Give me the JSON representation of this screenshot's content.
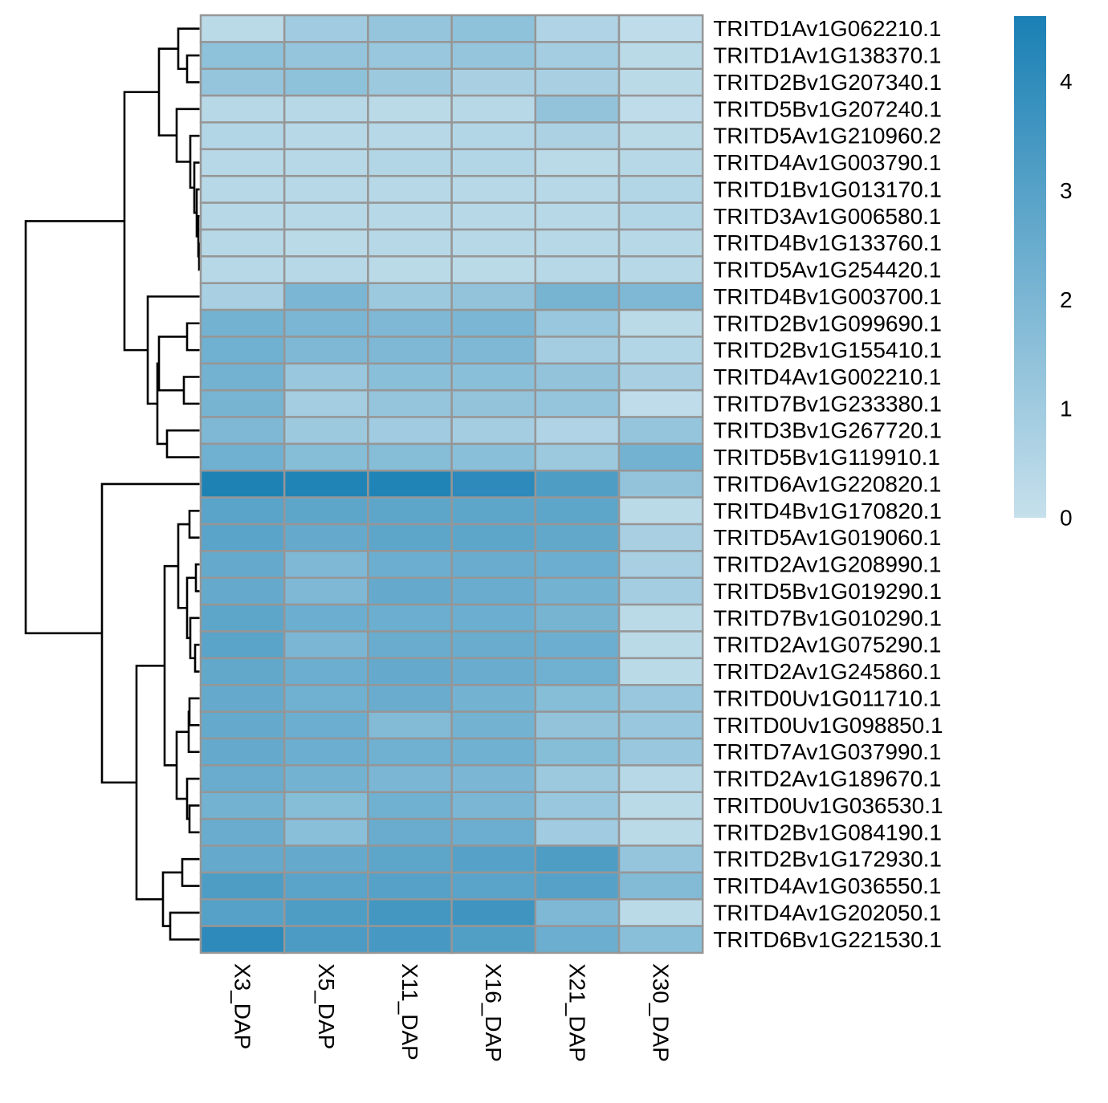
{
  "chart_data": {
    "type": "heatmap",
    "title": "",
    "xlabel": "",
    "ylabel": "",
    "columns": [
      "X3_DAP",
      "X5_DAP",
      "X11_DAP",
      "X16_DAP",
      "X21_DAP",
      "X30_DAP"
    ],
    "rows": [
      "TRITD1Av1G062210.1",
      "TRITD1Av1G138370.1",
      "TRITD2Bv1G207340.1",
      "TRITD5Bv1G207240.1",
      "TRITD5Av1G210960.2",
      "TRITD4Av1G003790.1",
      "TRITD1Bv1G013170.1",
      "TRITD3Av1G006580.1",
      "TRITD4Bv1G133760.1",
      "TRITD5Av1G254420.1",
      "TRITD4Bv1G003700.1",
      "TRITD2Bv1G099690.1",
      "TRITD2Bv1G155410.1",
      "TRITD4Av1G002210.1",
      "TRITD7Bv1G233380.1",
      "TRITD3Bv1G267720.1",
      "TRITD5Bv1G119910.1",
      "TRITD6Av1G220820.1",
      "TRITD4Bv1G170820.1",
      "TRITD5Av1G019060.1",
      "TRITD2Av1G208990.1",
      "TRITD5Bv1G019290.1",
      "TRITD7Bv1G010290.1",
      "TRITD2Av1G075290.1",
      "TRITD2Av1G245860.1",
      "TRITD0Uv1G011710.1",
      "TRITD0Uv1G098850.1",
      "TRITD7Av1G037990.1",
      "TRITD2Av1G189670.1",
      "TRITD0Uv1G036530.1",
      "TRITD2Bv1G084190.1",
      "TRITD2Bv1G172930.1",
      "TRITD4Av1G036550.1",
      "TRITD4Av1G202050.1",
      "TRITD6Bv1G221530.1"
    ],
    "values": [
      [
        0.3,
        1.0,
        1.3,
        1.5,
        0.6,
        0.2
      ],
      [
        1.5,
        1.3,
        1.2,
        1.3,
        0.9,
        0.3
      ],
      [
        1.3,
        1.5,
        1.1,
        0.8,
        0.8,
        0.3
      ],
      [
        0.4,
        0.4,
        0.3,
        0.4,
        1.4,
        0.2
      ],
      [
        0.5,
        0.4,
        0.4,
        0.5,
        0.7,
        0.3
      ],
      [
        0.4,
        0.4,
        0.5,
        0.5,
        0.3,
        0.4
      ],
      [
        0.4,
        0.4,
        0.4,
        0.4,
        0.4,
        0.5
      ],
      [
        0.4,
        0.4,
        0.4,
        0.4,
        0.4,
        0.5
      ],
      [
        0.4,
        0.3,
        0.4,
        0.4,
        0.4,
        0.4
      ],
      [
        0.4,
        0.4,
        0.3,
        0.3,
        0.4,
        0.4
      ],
      [
        0.8,
        2.0,
        1.1,
        1.4,
        2.1,
        1.9
      ],
      [
        2.2,
        2.0,
        1.9,
        2.0,
        1.2,
        0.3
      ],
      [
        2.3,
        1.9,
        1.9,
        1.9,
        0.9,
        0.5
      ],
      [
        2.2,
        1.2,
        1.6,
        1.6,
        1.4,
        0.8
      ],
      [
        2.1,
        0.9,
        1.3,
        1.4,
        1.3,
        0.2
      ],
      [
        1.9,
        1.1,
        1.0,
        0.9,
        0.6,
        1.3
      ],
      [
        2.3,
        1.7,
        1.7,
        1.6,
        1.1,
        2.2
      ],
      [
        4.5,
        4.4,
        4.4,
        4.1,
        3.2,
        1.4
      ],
      [
        2.9,
        2.8,
        2.8,
        2.8,
        2.8,
        0.3
      ],
      [
        2.9,
        2.6,
        2.8,
        2.8,
        2.7,
        0.8
      ],
      [
        2.6,
        1.9,
        2.4,
        2.5,
        2.4,
        0.8
      ],
      [
        2.6,
        1.9,
        2.6,
        2.5,
        2.2,
        0.9
      ],
      [
        2.8,
        2.4,
        2.4,
        2.4,
        2.1,
        0.3
      ],
      [
        2.9,
        2.0,
        2.5,
        2.5,
        2.4,
        0.3
      ],
      [
        2.7,
        2.4,
        2.6,
        2.5,
        2.3,
        0.3
      ],
      [
        2.6,
        2.3,
        2.5,
        2.2,
        1.7,
        1.2
      ],
      [
        2.6,
        2.4,
        1.8,
        2.2,
        1.4,
        1.2
      ],
      [
        2.6,
        2.4,
        2.3,
        2.3,
        1.7,
        1.2
      ],
      [
        2.5,
        2.2,
        2.0,
        2.0,
        1.1,
        0.4
      ],
      [
        2.2,
        1.7,
        2.3,
        2.0,
        1.2,
        0.3
      ],
      [
        2.5,
        1.6,
        2.5,
        2.4,
        1.0,
        0.3
      ],
      [
        2.6,
        2.6,
        2.8,
        3.0,
        3.2,
        1.3
      ],
      [
        3.2,
        2.9,
        3.0,
        2.9,
        3.0,
        1.8
      ],
      [
        3.0,
        3.2,
        3.5,
        3.6,
        1.9,
        0.3
      ],
      [
        4.1,
        3.3,
        3.4,
        3.1,
        2.4,
        1.6
      ]
    ],
    "color_scale": {
      "min": 0,
      "max": 4.6,
      "low_color": "#c6e0ec",
      "high_color": "#1a80b4",
      "ticks": [
        0,
        1,
        2,
        3,
        4
      ]
    },
    "cell_border_color": "#969696",
    "row_dendrogram": true,
    "legend_placement": "top-right"
  }
}
